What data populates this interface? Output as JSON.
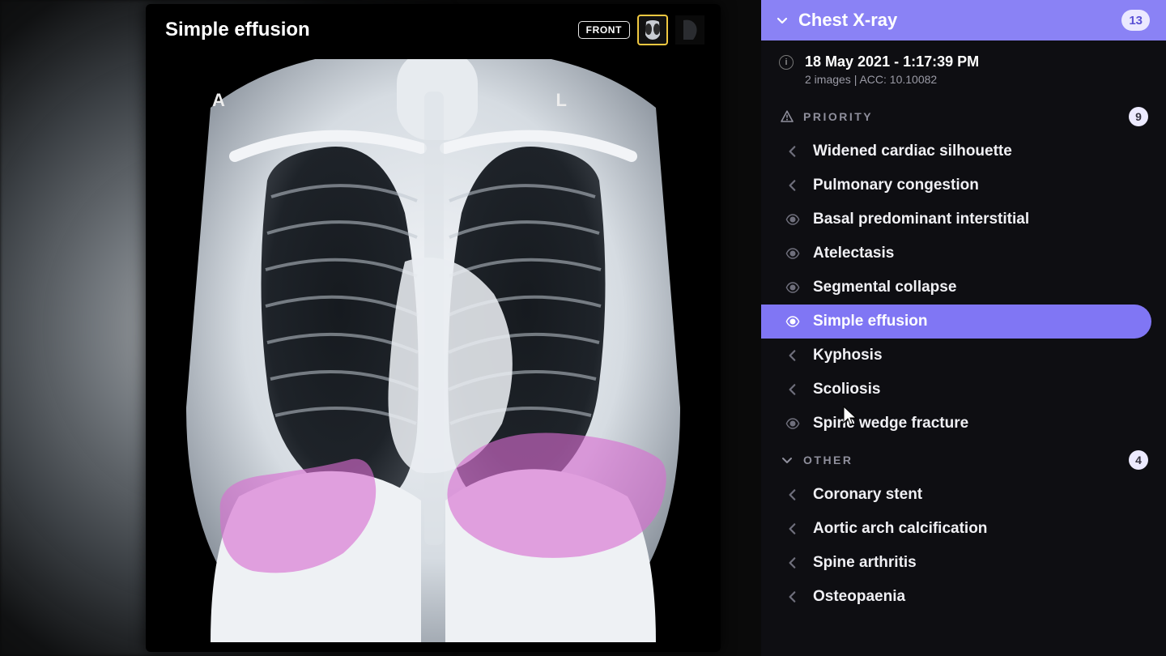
{
  "viewer": {
    "title": "Simple effusion",
    "view_badge": "FRONT",
    "markers": {
      "left": "A",
      "right": "L"
    },
    "highlight_color": "#d96dd2",
    "thumbnail_outline_color": "#f0c840"
  },
  "sidebar": {
    "header": {
      "title": "Chest X-ray",
      "count": "13",
      "accent": "#8a82f5"
    },
    "meta": {
      "timestamp": "18 May 2021 - 1:17:39 PM",
      "subtitle": "2 images  |  ACC: 10.10082"
    },
    "sections": [
      {
        "key": "priority",
        "label": "PRIORITY",
        "count": "9",
        "icon": "warning",
        "items": [
          {
            "icon": "chevron",
            "label": "Widened cardiac silhouette",
            "selected": false
          },
          {
            "icon": "chevron",
            "label": "Pulmonary congestion",
            "selected": false
          },
          {
            "icon": "eye",
            "label": "Basal predominant interstitial",
            "selected": false
          },
          {
            "icon": "eye",
            "label": "Atelectasis",
            "selected": false
          },
          {
            "icon": "eye",
            "label": "Segmental collapse",
            "selected": false
          },
          {
            "icon": "eye",
            "label": "Simple effusion",
            "selected": true
          },
          {
            "icon": "chevron",
            "label": "Kyphosis",
            "selected": false
          },
          {
            "icon": "chevron",
            "label": "Scoliosis",
            "selected": false
          },
          {
            "icon": "eye",
            "label": "Spine wedge fracture",
            "selected": false
          }
        ]
      },
      {
        "key": "other",
        "label": "OTHER",
        "count": "4",
        "icon": "chevron-down",
        "items": [
          {
            "icon": "chevron",
            "label": "Coronary stent",
            "selected": false
          },
          {
            "icon": "chevron",
            "label": "Aortic arch calcification",
            "selected": false
          },
          {
            "icon": "chevron",
            "label": "Spine arthritis",
            "selected": false
          },
          {
            "icon": "chevron",
            "label": "Osteopaenia",
            "selected": false
          }
        ]
      }
    ]
  },
  "colors": {
    "bg": "#000000",
    "panel": "#0e0e12",
    "text_muted": "#8f8f9c",
    "accent": "#8076f4"
  }
}
